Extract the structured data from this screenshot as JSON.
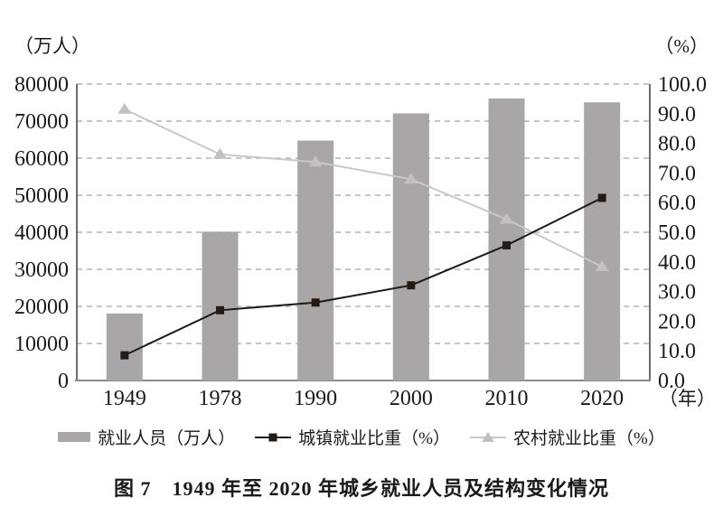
{
  "chart_data": {
    "type": "bar",
    "subtype": "dual-axis bar + two lines",
    "categories": [
      "1949",
      "1978",
      "1990",
      "2000",
      "2010",
      "2020"
    ],
    "series": [
      {
        "name": "就业人员（万人）",
        "type": "bar",
        "axis": "left",
        "values": [
          18082,
          40152,
          64749,
          72085,
          76105,
          75064
        ]
      },
      {
        "name": "城镇就业比重（%）",
        "type": "line",
        "axis": "right",
        "marker": "square",
        "values": [
          8.5,
          23.7,
          26.3,
          32.1,
          45.6,
          61.6
        ]
      },
      {
        "name": "农村就业比重（%）",
        "type": "line",
        "axis": "right",
        "marker": "triangle",
        "values": [
          91.5,
          76.3,
          73.7,
          67.9,
          54.4,
          38.4
        ]
      }
    ],
    "left_axis": {
      "unit": "（万人）",
      "min": 0,
      "max": 80000,
      "tick_step": 10000,
      "ticks": [
        "0",
        "10000",
        "20000",
        "30000",
        "40000",
        "50000",
        "60000",
        "70000",
        "80000"
      ]
    },
    "right_axis": {
      "unit": "（%）",
      "min": 0,
      "max": 100,
      "tick_step": 10,
      "ticks": [
        "0.0",
        "10.0",
        "20.0",
        "30.0",
        "40.0",
        "50.0",
        "60.0",
        "70.0",
        "80.0",
        "90.0",
        "100.0"
      ]
    },
    "x_axis": {
      "unit": "（年）"
    },
    "grid": "dashed horizontal at left-axis ticks",
    "legend_position": "bottom"
  },
  "legend": {
    "items": [
      {
        "label": "就业人员（万人）"
      },
      {
        "label": "城镇就业比重（%）"
      },
      {
        "label": "农村就业比重（%）"
      }
    ]
  },
  "caption": {
    "text": "图 7　1949 年至 2020 年城乡就业人员及结构变化情况"
  },
  "colors": {
    "bar": "#a8a6a6",
    "urban_line": "#1c1917",
    "urban_marker": "#241b17",
    "rural_line": "#c9c8c8",
    "rural_marker": "#c2c1c1",
    "grid": "#b3b3b3",
    "side_axis": "#3d3d3d",
    "bottom_axis": "#8a8a8a",
    "text": "#1a1a1a"
  }
}
